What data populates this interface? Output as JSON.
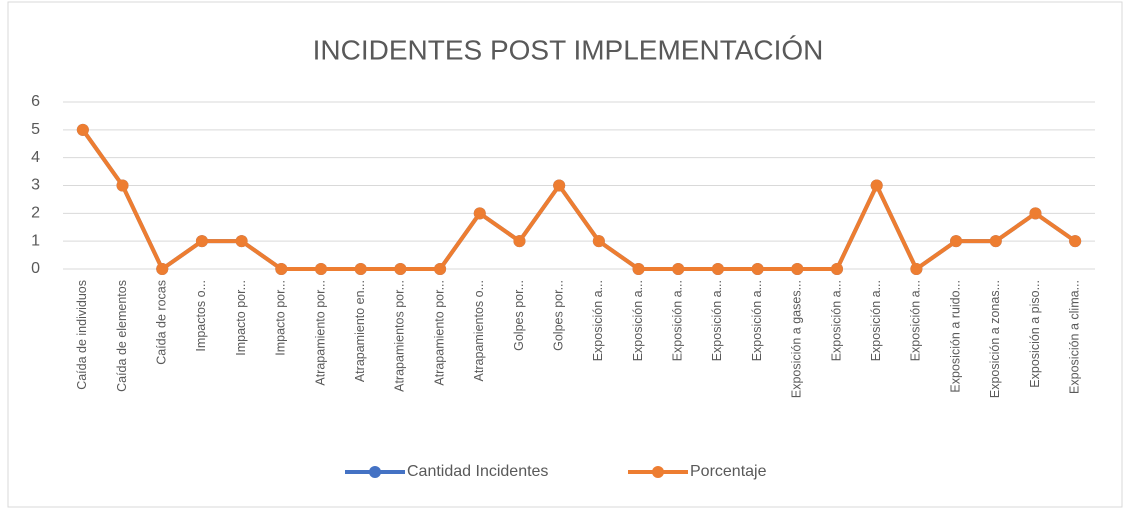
{
  "chart_data": {
    "type": "line",
    "title": "INCIDENTES POST IMPLEMENTACIÓN",
    "categories": [
      "Caída de individuos",
      "Caída de elementos",
      "Caída de rocas",
      "Impactos o...",
      "Impacto por...",
      "Impacto por...",
      "Atrapamiento por...",
      "Atrapamiento en...",
      "Atrapamientos por...",
      "Atrapamiento por...",
      "Atrapamientos o...",
      "Golpes por...",
      "Golpes por...",
      "Exposición a...",
      "Exposición a...",
      "Exposición a...",
      "Exposición a...",
      "Exposición a...",
      "Exposición a gases...",
      "Exposición a...",
      "Exposición a...",
      "Exposición a...",
      "Exposición a ruido...",
      "Exposición a zonas...",
      "Exposición a piso...",
      "Exposición a clima..."
    ],
    "series": [
      {
        "name": "Cantidad Incidentes",
        "color": "#4472c4",
        "values": [
          5,
          3,
          0,
          1,
          1,
          0,
          0,
          0,
          0,
          0,
          2,
          1,
          3,
          1,
          0,
          0,
          0,
          0,
          0,
          0,
          3,
          0,
          1,
          1,
          2,
          1
        ]
      },
      {
        "name": "Porcentaje",
        "color": "#ed7d31",
        "values": [
          5,
          3,
          0,
          1,
          1,
          0,
          0,
          0,
          0,
          0,
          2,
          1,
          3,
          1,
          0,
          0,
          0,
          0,
          0,
          0,
          3,
          0,
          1,
          1,
          2,
          1
        ]
      }
    ],
    "ylim": [
      0,
      6
    ],
    "yticks": [
      0,
      1,
      2,
      3,
      4,
      5,
      6
    ],
    "grid": true,
    "legend": "bottom"
  }
}
